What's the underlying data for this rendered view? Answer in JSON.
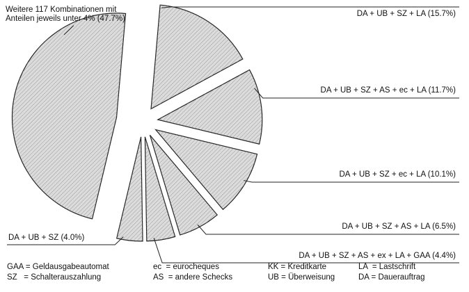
{
  "chart_data": {
    "type": "pie",
    "categories": [
      "DA + UB + SZ + LA",
      "DA + UB + SZ + AS + ec + LA",
      "DA + UB + SZ + ec + LA",
      "DA + UB + SZ + AS + LA",
      "DA + UB + SZ + AS + ex + LA + GAA",
      "DA + UB + SZ",
      "Weitere 117 Kombinationen mit Anteilen jeweils unter 4%"
    ],
    "values": [
      15.7,
      11.7,
      10.1,
      6.5,
      4.4,
      4.0,
      47.7
    ],
    "value_labels": [
      "(15.7%)",
      "(11.7%)",
      "(10.1%)",
      "(6.5%)",
      "(4.4%)",
      "(4.0%)",
      "(47.7%)"
    ],
    "color": "#dcdcdc",
    "legend_items": [
      "GAA = Geldausgabeautomat",
      "ec  = eurocheques",
      "KK = Kreditkarte",
      "LA  = Lastschrift",
      "SZ   = Schalterauszahlung",
      "AS  = andere Schecks",
      "UB = Überweisung",
      "DA = Dauerauftrag"
    ]
  }
}
